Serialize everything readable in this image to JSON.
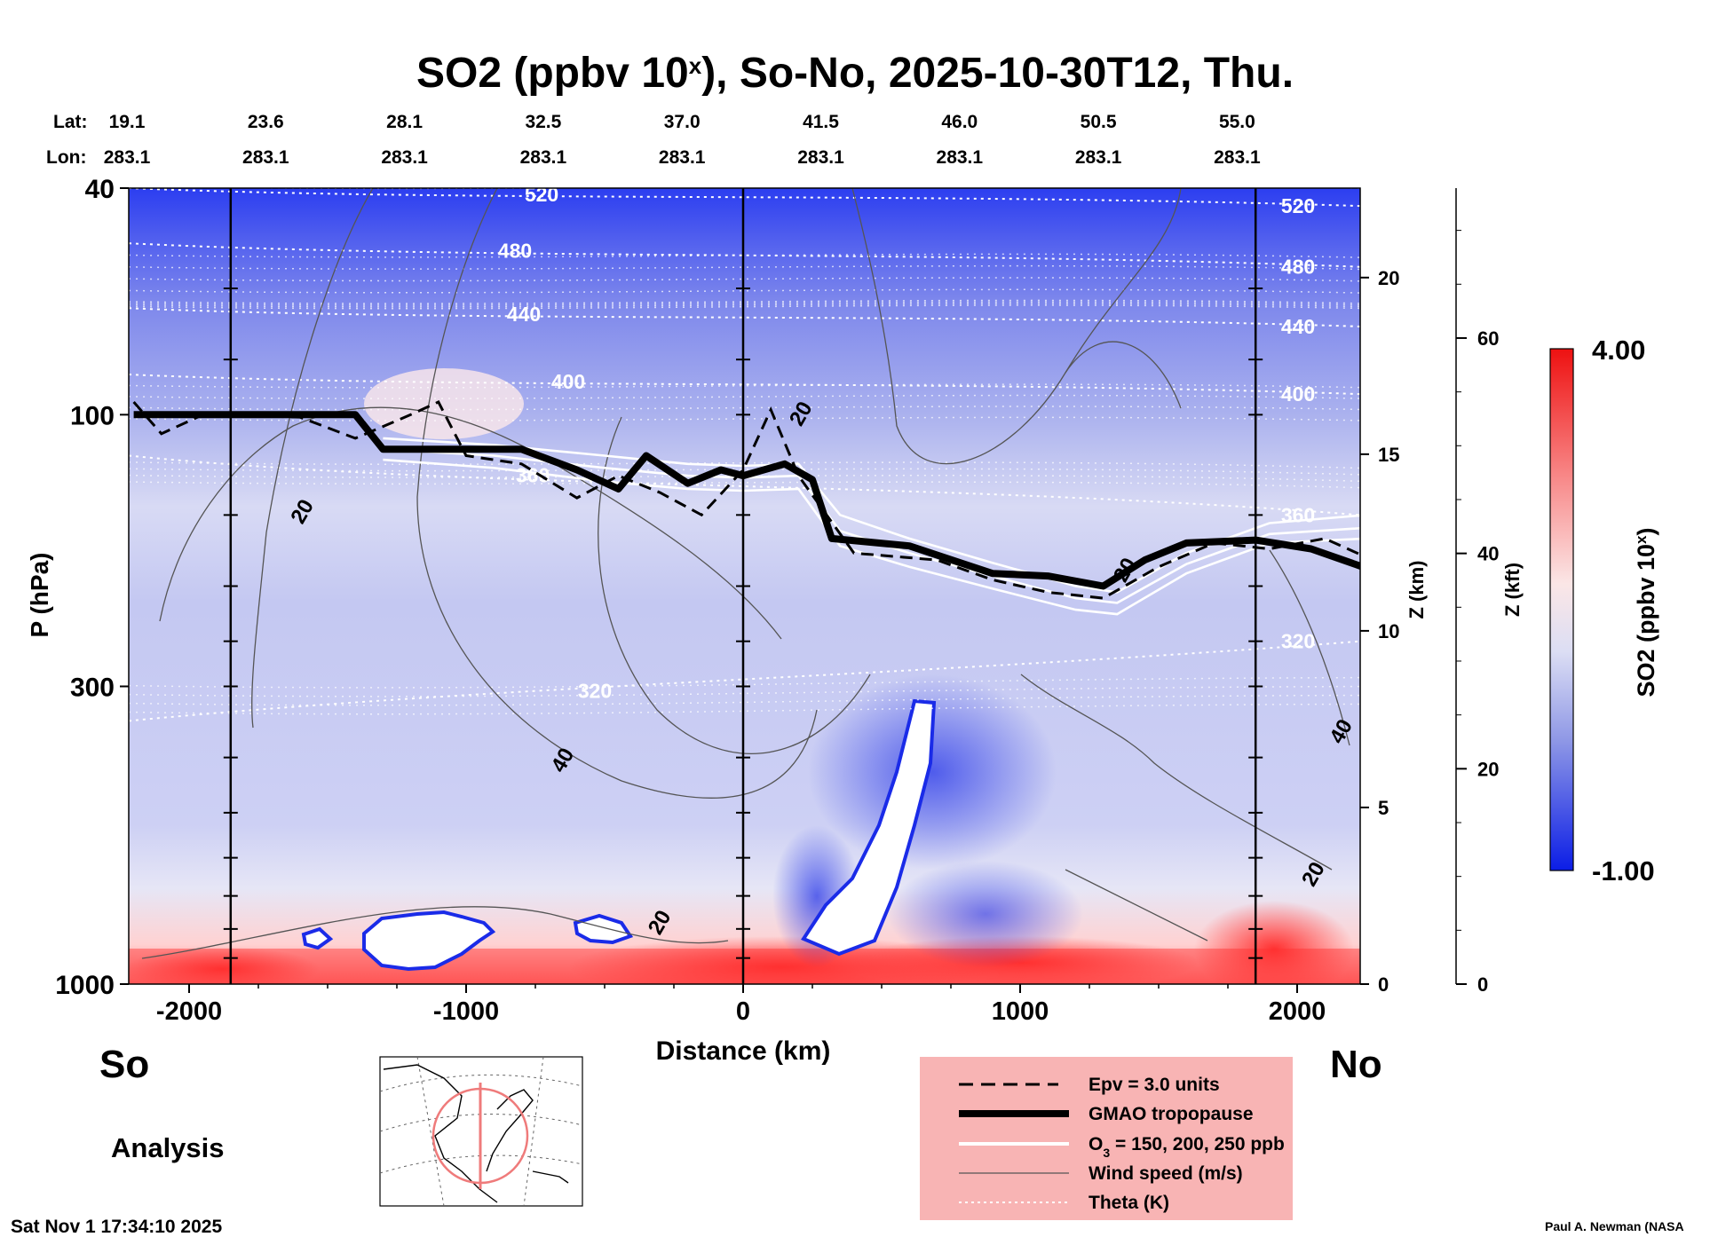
{
  "chart_data": {
    "type": "heatmap",
    "title_main": "SO2 (ppbv 10",
    "title_sup": "x",
    "title_rest": "), So-No, 2025-10-30T12, Thu.",
    "lat_label": "Lat:",
    "lon_label": "Lon:",
    "stations": [
      {
        "lat": "19.1",
        "lon": "283.1"
      },
      {
        "lat": "23.6",
        "lon": "283.1"
      },
      {
        "lat": "28.1",
        "lon": "283.1"
      },
      {
        "lat": "32.5",
        "lon": "283.1"
      },
      {
        "lat": "37.0",
        "lon": "283.1"
      },
      {
        "lat": "41.5",
        "lon": "283.1"
      },
      {
        "lat": "46.0",
        "lon": "283.1"
      },
      {
        "lat": "50.5",
        "lon": "283.1"
      },
      {
        "lat": "55.0",
        "lon": "283.1"
      }
    ],
    "xlabel": "Distance (km)",
    "xlim": [
      -2250,
      2250
    ],
    "xticks": [
      -2000,
      -1000,
      0,
      1000,
      2000
    ],
    "xtick_labels": [
      "-2000",
      "-1000",
      "0",
      "1000",
      "2000"
    ],
    "ylabel": "P (hPa)",
    "ylim": [
      1000,
      40
    ],
    "yticks": [
      40,
      100,
      300,
      1000
    ],
    "ytick_labels": [
      "40",
      "100",
      "300",
      "1000"
    ],
    "z_km_label": "Z (km)",
    "z_km_ticks": [
      0,
      5,
      10,
      15,
      20
    ],
    "z_km_tick_labels": [
      "0",
      "5",
      "10",
      "15",
      "20"
    ],
    "z_kft_label": "Z (kft)",
    "z_kft_ticks": [
      0,
      20,
      40,
      60
    ],
    "z_kft_tick_labels": [
      "0",
      "20",
      "40",
      "60"
    ],
    "vertical_lines_km": [
      -1850,
      0,
      1850
    ],
    "tropopause_hpa": [
      [
        -2200,
        100
      ],
      [
        -1400,
        100
      ],
      [
        -1300,
        115
      ],
      [
        -800,
        115
      ],
      [
        -600,
        125
      ],
      [
        -450,
        135
      ],
      [
        -350,
        118
      ],
      [
        -200,
        132
      ],
      [
        -80,
        125
      ],
      [
        0,
        128
      ],
      [
        150,
        122
      ],
      [
        250,
        130
      ],
      [
        320,
        165
      ],
      [
        600,
        170
      ],
      [
        900,
        190
      ],
      [
        1100,
        192
      ],
      [
        1300,
        200
      ],
      [
        1450,
        180
      ],
      [
        1600,
        168
      ],
      [
        1850,
        166
      ],
      [
        2050,
        172
      ],
      [
        2250,
        186
      ]
    ],
    "epv_hpa": [
      [
        -2200,
        95
      ],
      [
        -2100,
        108
      ],
      [
        -1950,
        100
      ],
      [
        -1600,
        101
      ],
      [
        -1400,
        110
      ],
      [
        -1200,
        100
      ],
      [
        -1100,
        95
      ],
      [
        -1000,
        118
      ],
      [
        -800,
        122
      ],
      [
        -600,
        140
      ],
      [
        -450,
        128
      ],
      [
        -300,
        137
      ],
      [
        -150,
        150
      ],
      [
        0,
        125
      ],
      [
        100,
        98
      ],
      [
        200,
        128
      ],
      [
        400,
        175
      ],
      [
        700,
        180
      ],
      [
        900,
        195
      ],
      [
        1100,
        205
      ],
      [
        1300,
        210
      ],
      [
        1500,
        185
      ],
      [
        1700,
        168
      ],
      [
        1900,
        172
      ],
      [
        2100,
        165
      ],
      [
        2250,
        178
      ]
    ],
    "ozone_hpa": [
      [
        [
          -1300,
          110
        ],
        [
          -900,
          113
        ],
        [
          -500,
          118
        ],
        [
          -200,
          122
        ],
        [
          0,
          123
        ],
        [
          200,
          122
        ],
        [
          350,
          150
        ],
        [
          600,
          165
        ],
        [
          900,
          182
        ],
        [
          1200,
          200
        ],
        [
          1350,
          205
        ],
        [
          1600,
          175
        ],
        [
          1900,
          155
        ],
        [
          2250,
          150
        ]
      ],
      [
        [
          -1300,
          115
        ],
        [
          -900,
          118
        ],
        [
          -500,
          124
        ],
        [
          -200,
          128
        ],
        [
          0,
          129
        ],
        [
          200,
          128
        ],
        [
          350,
          160
        ],
        [
          600,
          175
        ],
        [
          900,
          192
        ],
        [
          1200,
          210
        ],
        [
          1350,
          214
        ],
        [
          1600,
          183
        ],
        [
          1900,
          162
        ],
        [
          2250,
          158
        ]
      ],
      [
        [
          -1300,
          120
        ],
        [
          -900,
          124
        ],
        [
          -500,
          131
        ],
        [
          -200,
          135
        ],
        [
          0,
          136
        ],
        [
          200,
          135
        ],
        [
          350,
          170
        ],
        [
          600,
          185
        ],
        [
          900,
          202
        ],
        [
          1200,
          220
        ],
        [
          1350,
          224
        ],
        [
          1600,
          190
        ],
        [
          1900,
          168
        ],
        [
          2250,
          165
        ]
      ]
    ],
    "theta_contours": [
      {
        "label": "520",
        "left_hpa": 40,
        "right_hpa": 43
      },
      {
        "label": "480",
        "left_hpa": 50,
        "right_hpa": 55
      },
      {
        "label": "440",
        "left_hpa": 65,
        "right_hpa": 70
      },
      {
        "label": "400",
        "left_hpa": 85,
        "right_hpa": 92
      },
      {
        "label": "360",
        "left_hpa": 118,
        "right_hpa": 150
      },
      {
        "label": "320",
        "left_hpa": 345,
        "right_hpa": 250
      }
    ],
    "wind_labels": [
      {
        "label": "20",
        "x_km": -1570,
        "p_hpa": 150
      },
      {
        "label": "20",
        "x_km": 230,
        "p_hpa": 101
      },
      {
        "label": "20",
        "x_km": 1400,
        "p_hpa": 190
      },
      {
        "label": "40",
        "x_km": -630,
        "p_hpa": 410
      },
      {
        "label": "20",
        "x_km": -280,
        "p_hpa": 790
      },
      {
        "label": "20",
        "x_km": 2080,
        "p_hpa": 650
      },
      {
        "label": "40",
        "x_km": 2180,
        "p_hpa": 365
      }
    ],
    "colorbar_label_main": "SO2 (ppbv 10",
    "colorbar_label_sup": "x",
    "colorbar_label_rest": ")",
    "colorbar_max_label": "4.00",
    "colorbar_min_label": "-1.00",
    "colorbar_range": [
      -1.0,
      4.0
    ],
    "colors": {
      "high": "#ff1a1a",
      "mid_high": "#ffcccc",
      "neutral": "#f2f2f8",
      "mid_low": "#b8bcec",
      "low": "#0b1de6"
    }
  },
  "labels": {
    "south": "So",
    "north": "No",
    "analysis": "Analysis",
    "timestamp": "Sat Nov  1 17:34:10 2025",
    "credit": "Paul A. Newman (NASA"
  },
  "legend": {
    "items": [
      {
        "label": "Epv = 3.0 units",
        "style": "dashed"
      },
      {
        "label": "GMAO tropopause",
        "style": "thick"
      },
      {
        "label_pre": "O",
        "label_sub": "3",
        "label_post": " = 150, 200, 250 ppb",
        "style": "white-double"
      },
      {
        "label": "Wind speed (m/s)",
        "style": "thin"
      },
      {
        "label": "Theta (K)",
        "style": "dotted"
      }
    ],
    "background": "#f8b4b4"
  }
}
